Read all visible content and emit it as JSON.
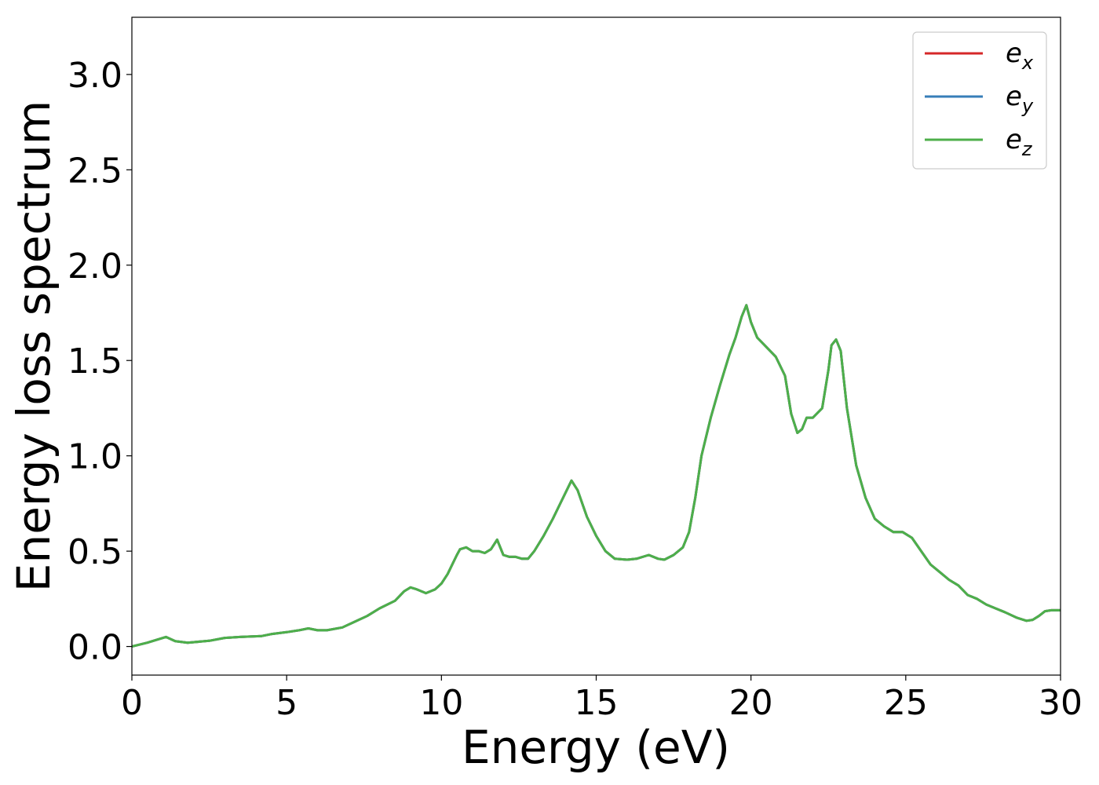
{
  "chart_data": {
    "type": "line",
    "title": "",
    "xlabel": "Energy (eV)",
    "ylabel": "Energy loss spectrum",
    "xlim": [
      0,
      30
    ],
    "ylim": [
      -0.15,
      3.3
    ],
    "xticks": [
      0,
      5,
      10,
      15,
      20,
      25,
      30
    ],
    "xtick_labels": [
      "0",
      "5",
      "10",
      "15",
      "20",
      "25",
      "30"
    ],
    "yticks": [
      0.0,
      0.5,
      1.0,
      1.5,
      2.0,
      2.5,
      3.0
    ],
    "ytick_labels": [
      "0.0",
      "0.5",
      "1.0",
      "1.5",
      "2.0",
      "2.5",
      "3.0"
    ],
    "grid": false,
    "legend_position": "top-right",
    "x": [
      0,
      0.5,
      0.8,
      1.1,
      1.4,
      1.8,
      2.5,
      3.0,
      3.5,
      4.2,
      4.5,
      5.0,
      5.4,
      5.7,
      6.0,
      6.3,
      6.8,
      7.2,
      7.6,
      8.0,
      8.5,
      8.8,
      9.0,
      9.2,
      9.5,
      9.8,
      10.0,
      10.2,
      10.5,
      10.6,
      10.8,
      11.0,
      11.2,
      11.4,
      11.6,
      11.8,
      12.0,
      12.2,
      12.4,
      12.6,
      12.8,
      13.0,
      13.3,
      13.6,
      13.9,
      14.2,
      14.4,
      14.7,
      15.0,
      15.3,
      15.6,
      16.0,
      16.3,
      16.7,
      17.0,
      17.2,
      17.5,
      17.8,
      18.0,
      18.2,
      18.4,
      18.7,
      19.0,
      19.3,
      19.5,
      19.7,
      19.85,
      20.0,
      20.2,
      20.5,
      20.8,
      21.1,
      21.3,
      21.5,
      21.65,
      21.8,
      22.0,
      22.3,
      22.5,
      22.6,
      22.75,
      22.9,
      23.1,
      23.4,
      23.7,
      24.0,
      24.3,
      24.6,
      24.9,
      25.2,
      25.5,
      25.8,
      26.1,
      26.4,
      26.7,
      27.0,
      27.3,
      27.6,
      27.9,
      28.2,
      28.6,
      28.9,
      29.1,
      29.3,
      29.5,
      29.7,
      30.0
    ],
    "series": [
      {
        "name": "e_x",
        "name_base": "e",
        "name_sub": "x",
        "color": "#d62728",
        "values": [
          0.0,
          0.02,
          0.035,
          0.05,
          0.028,
          0.02,
          0.03,
          0.045,
          0.05,
          0.055,
          0.065,
          0.075,
          0.085,
          0.095,
          0.085,
          0.085,
          0.1,
          0.13,
          0.16,
          0.2,
          0.24,
          0.29,
          0.31,
          0.3,
          0.28,
          0.3,
          0.33,
          0.38,
          0.48,
          0.51,
          0.52,
          0.5,
          0.5,
          0.49,
          0.51,
          0.56,
          0.48,
          0.47,
          0.47,
          0.46,
          0.46,
          0.5,
          0.58,
          0.67,
          0.77,
          0.87,
          0.82,
          0.68,
          0.58,
          0.5,
          0.46,
          0.455,
          0.46,
          0.48,
          0.46,
          0.455,
          0.48,
          0.52,
          0.6,
          0.78,
          1.0,
          1.2,
          1.37,
          1.53,
          1.62,
          1.73,
          1.79,
          1.7,
          1.62,
          1.57,
          1.52,
          1.42,
          1.22,
          1.12,
          1.14,
          1.2,
          1.2,
          1.25,
          1.45,
          1.58,
          1.61,
          1.55,
          1.25,
          0.95,
          0.78,
          0.67,
          0.63,
          0.6,
          0.6,
          0.57,
          0.5,
          0.43,
          0.39,
          0.35,
          0.32,
          0.27,
          0.25,
          0.22,
          0.2,
          0.18,
          0.15,
          0.135,
          0.14,
          0.16,
          0.185,
          0.19,
          0.19
        ]
      },
      {
        "name": "e_y",
        "name_base": "e",
        "name_sub": "y",
        "color": "#377eb8",
        "values": [
          0.0,
          0.02,
          0.035,
          0.05,
          0.028,
          0.02,
          0.03,
          0.045,
          0.05,
          0.055,
          0.065,
          0.075,
          0.085,
          0.095,
          0.085,
          0.085,
          0.1,
          0.13,
          0.16,
          0.2,
          0.24,
          0.29,
          0.31,
          0.3,
          0.28,
          0.3,
          0.33,
          0.38,
          0.48,
          0.51,
          0.52,
          0.5,
          0.5,
          0.49,
          0.51,
          0.56,
          0.48,
          0.47,
          0.47,
          0.46,
          0.46,
          0.5,
          0.58,
          0.67,
          0.77,
          0.87,
          0.82,
          0.68,
          0.58,
          0.5,
          0.46,
          0.455,
          0.46,
          0.48,
          0.46,
          0.455,
          0.48,
          0.52,
          0.6,
          0.78,
          1.0,
          1.2,
          1.37,
          1.53,
          1.62,
          1.73,
          1.79,
          1.7,
          1.62,
          1.57,
          1.52,
          1.42,
          1.22,
          1.12,
          1.14,
          1.2,
          1.2,
          1.25,
          1.45,
          1.58,
          1.61,
          1.55,
          1.25,
          0.95,
          0.78,
          0.67,
          0.63,
          0.6,
          0.6,
          0.57,
          0.5,
          0.43,
          0.39,
          0.35,
          0.32,
          0.27,
          0.25,
          0.22,
          0.2,
          0.18,
          0.15,
          0.135,
          0.14,
          0.16,
          0.185,
          0.19,
          0.19
        ]
      },
      {
        "name": "e_z",
        "name_base": "e",
        "name_sub": "z",
        "color": "#4daf4a",
        "values": [
          0.0,
          0.02,
          0.035,
          0.05,
          0.028,
          0.02,
          0.03,
          0.045,
          0.05,
          0.055,
          0.065,
          0.075,
          0.085,
          0.095,
          0.085,
          0.085,
          0.1,
          0.13,
          0.16,
          0.2,
          0.24,
          0.29,
          0.31,
          0.3,
          0.28,
          0.3,
          0.33,
          0.38,
          0.48,
          0.51,
          0.52,
          0.5,
          0.5,
          0.49,
          0.51,
          0.56,
          0.48,
          0.47,
          0.47,
          0.46,
          0.46,
          0.5,
          0.58,
          0.67,
          0.77,
          0.87,
          0.82,
          0.68,
          0.58,
          0.5,
          0.46,
          0.455,
          0.46,
          0.48,
          0.46,
          0.455,
          0.48,
          0.52,
          0.6,
          0.78,
          1.0,
          1.2,
          1.37,
          1.53,
          1.62,
          1.73,
          1.79,
          1.7,
          1.62,
          1.57,
          1.52,
          1.42,
          1.22,
          1.12,
          1.14,
          1.2,
          1.2,
          1.25,
          1.45,
          1.58,
          1.61,
          1.55,
          1.25,
          0.95,
          0.78,
          0.67,
          0.63,
          0.6,
          0.6,
          0.57,
          0.5,
          0.43,
          0.39,
          0.35,
          0.32,
          0.27,
          0.25,
          0.22,
          0.2,
          0.18,
          0.15,
          0.135,
          0.14,
          0.16,
          0.185,
          0.19,
          0.19
        ]
      }
    ]
  }
}
